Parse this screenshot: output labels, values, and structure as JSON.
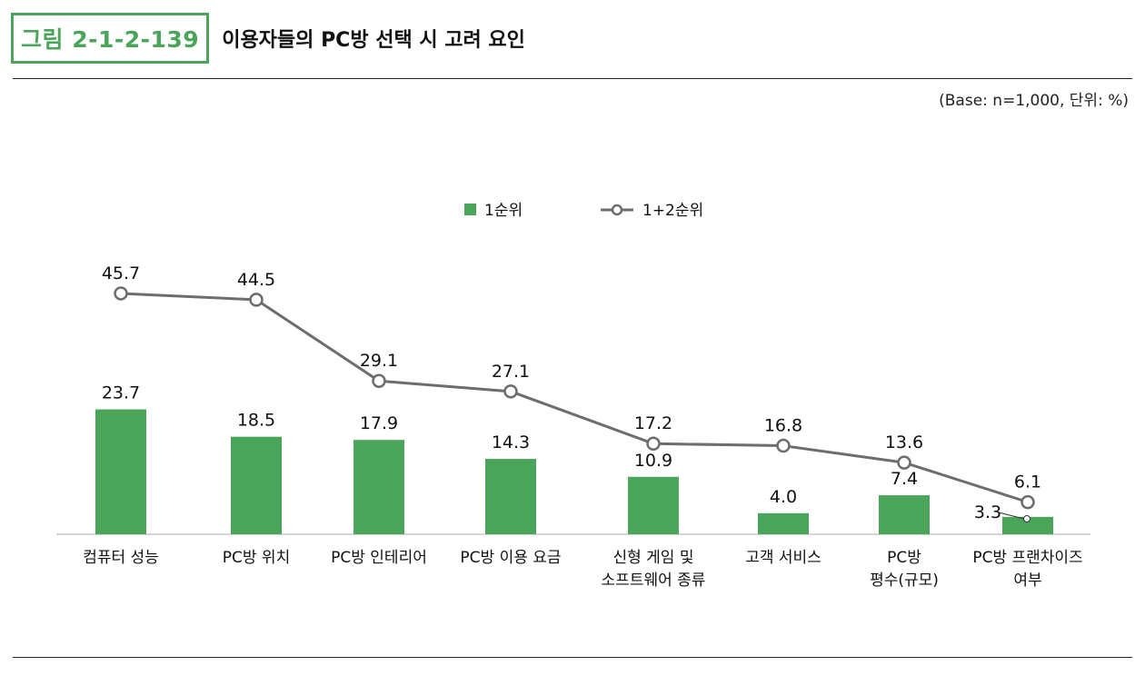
{
  "figure": {
    "number": "그림 2-1-2-139",
    "title": "이용자들의 PC방 선택 시 고려 요인",
    "base_note": "(Base: n=1,000, 단위: %)"
  },
  "colors": {
    "bar": "#4aa55a",
    "line": "#6d6d6d",
    "badge": "#4aa55a"
  },
  "chart_data": {
    "type": "bar",
    "categories": [
      [
        "컴퓨터 성능"
      ],
      [
        "PC방 위치"
      ],
      [
        "PC방 인테리어"
      ],
      [
        "PC방 이용 요금"
      ],
      [
        "신형 게임 및",
        "소프트웨어 종류"
      ],
      [
        "고객 서비스"
      ],
      [
        "PC방",
        "평수(규모)"
      ],
      [
        "PC방 프랜차이즈",
        "여부"
      ]
    ],
    "series": [
      {
        "name": "1순위",
        "type": "bar",
        "values": [
          23.7,
          18.5,
          17.9,
          14.3,
          10.9,
          4.0,
          7.4,
          3.3
        ],
        "labels": [
          "23.7",
          "18.5",
          "17.9",
          "14.3",
          "10.9",
          "4.0",
          "7.4",
          "3.3"
        ]
      },
      {
        "name": "1+2순위",
        "type": "line",
        "values": [
          45.7,
          44.5,
          29.1,
          27.1,
          17.2,
          16.8,
          13.6,
          6.1
        ],
        "labels": [
          "45.7",
          "44.5",
          "29.1",
          "27.1",
          "17.2",
          "16.8",
          "13.6",
          "6.1"
        ]
      }
    ],
    "ylim": [
      0,
      50
    ],
    "grid": false,
    "legend": "top-center"
  }
}
